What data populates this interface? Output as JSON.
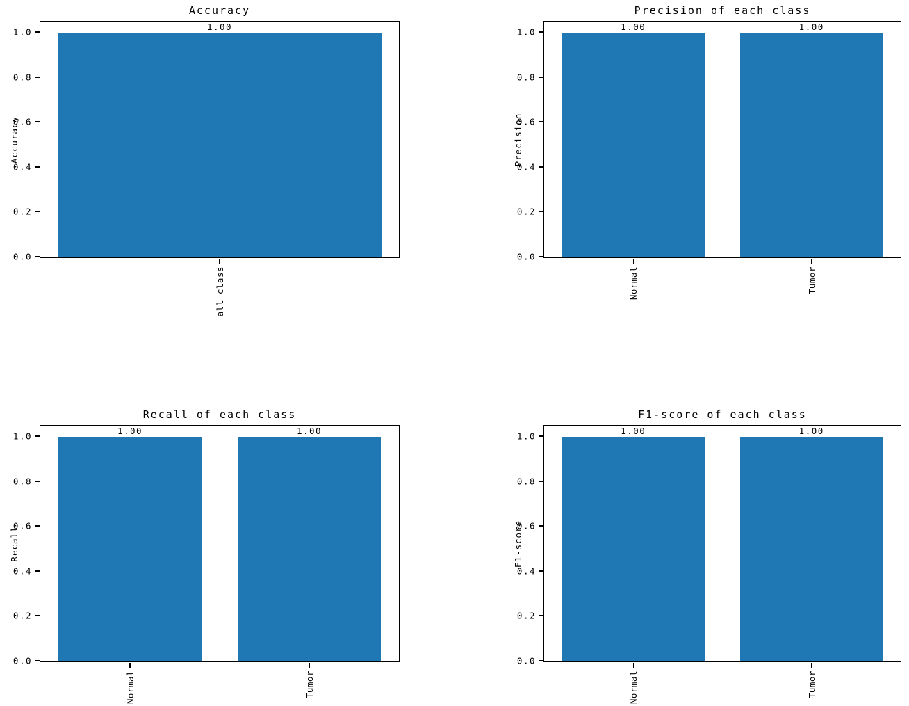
{
  "figure": {
    "background_color": "#ffffff",
    "text_color": "#000000",
    "bar_color": "#1f77b4",
    "layout": "2x2 grid of bar charts"
  },
  "chart_data": [
    {
      "type": "bar",
      "title": "Accuracy",
      "ylabel": "Accuracy",
      "xlabel": "",
      "categories": [
        "all class"
      ],
      "values": [
        1.0
      ],
      "bar_labels": [
        "1.00"
      ],
      "yticks": [
        "0.0",
        "0.2",
        "0.4",
        "0.6",
        "0.8",
        "1.0"
      ],
      "ylim": [
        0,
        1.05
      ],
      "xtick_rotation": 90,
      "bar_color": "#1f77b4",
      "grid": false,
      "legend": "none"
    },
    {
      "type": "bar",
      "title": "Precision of each class",
      "ylabel": "Precision",
      "xlabel": "",
      "categories": [
        "Normal",
        "Tumor"
      ],
      "values": [
        1.0,
        1.0
      ],
      "bar_labels": [
        "1.00",
        "1.00"
      ],
      "yticks": [
        "0.0",
        "0.2",
        "0.4",
        "0.6",
        "0.8",
        "1.0"
      ],
      "ylim": [
        0,
        1.05
      ],
      "xtick_rotation": 90,
      "bar_color": "#1f77b4",
      "grid": false,
      "legend": "none"
    },
    {
      "type": "bar",
      "title": "Recall of each class",
      "ylabel": "Recall",
      "xlabel": "",
      "categories": [
        "Normal",
        "Tumor"
      ],
      "values": [
        1.0,
        1.0
      ],
      "bar_labels": [
        "1.00",
        "1.00"
      ],
      "yticks": [
        "0.0",
        "0.2",
        "0.4",
        "0.6",
        "0.8",
        "1.0"
      ],
      "ylim": [
        0,
        1.05
      ],
      "xtick_rotation": 90,
      "bar_color": "#1f77b4",
      "grid": false,
      "legend": "none"
    },
    {
      "type": "bar",
      "title": "F1-score of each class",
      "ylabel": "F1-score",
      "xlabel": "",
      "categories": [
        "Normal",
        "Tumor"
      ],
      "values": [
        1.0,
        1.0
      ],
      "bar_labels": [
        "1.00",
        "1.00"
      ],
      "yticks": [
        "0.0",
        "0.2",
        "0.4",
        "0.6",
        "0.8",
        "1.0"
      ],
      "ylim": [
        0,
        1.05
      ],
      "xtick_rotation": 90,
      "bar_color": "#1f77b4",
      "grid": false,
      "legend": "none"
    }
  ]
}
